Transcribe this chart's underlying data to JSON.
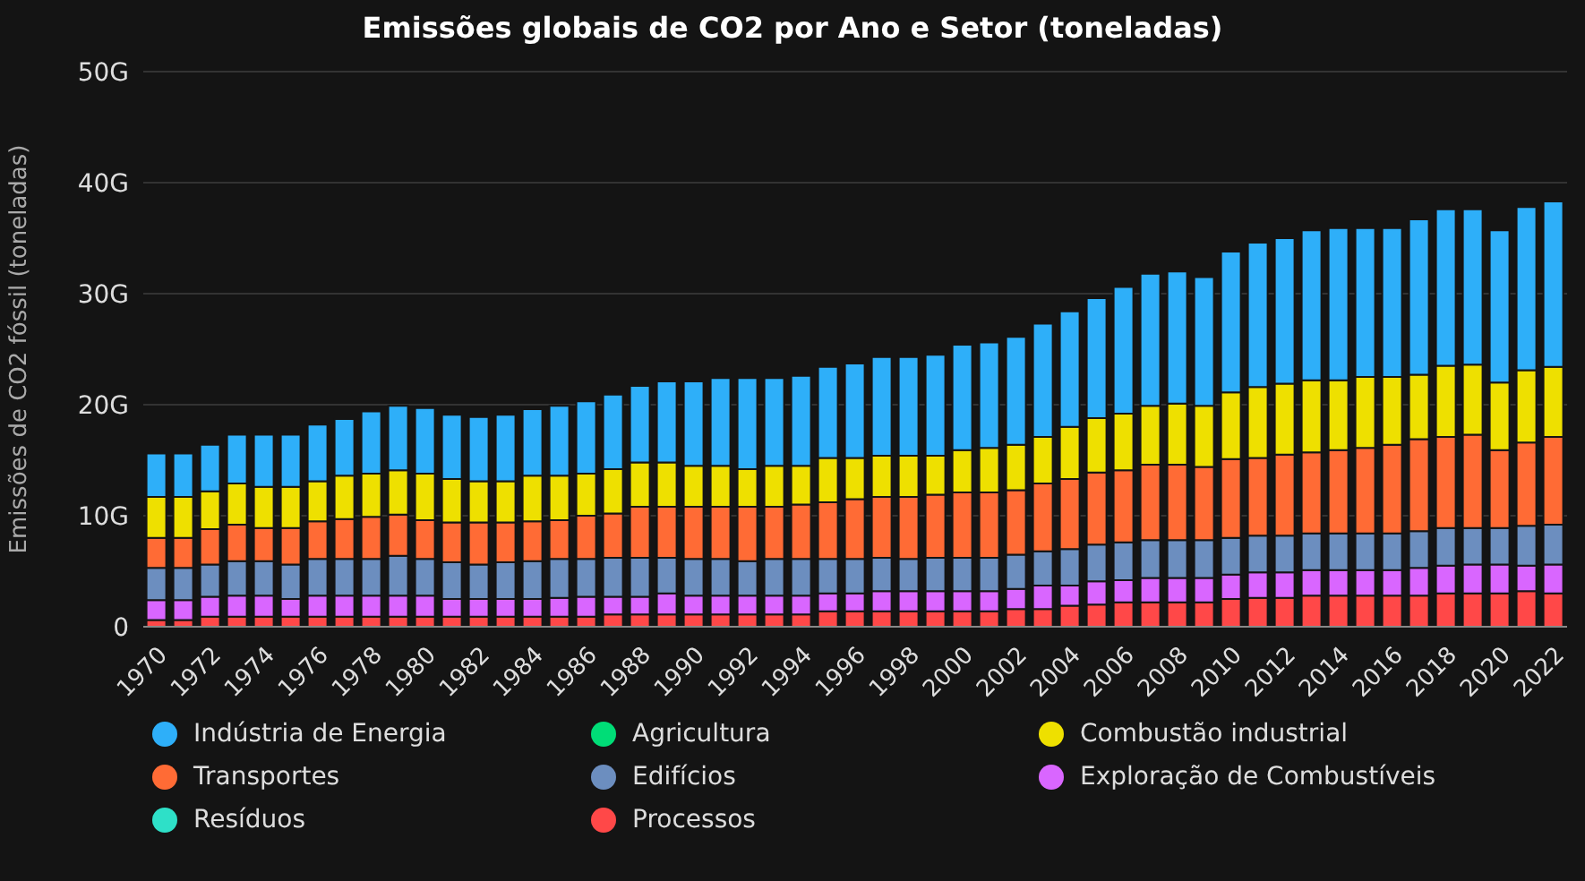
{
  "chart_data": {
    "type": "bar",
    "stacked": true,
    "title": "Emissões globais de CO2 por Ano e Setor (toneladas)",
    "ylabel": "Emissões de CO2 fóssil (toneladas)",
    "categories": [
      "1970",
      null,
      "1972",
      null,
      "1974",
      null,
      "1976",
      null,
      "1978",
      null,
      "1980",
      null,
      "1982",
      null,
      "1984",
      null,
      "1986",
      null,
      "1988",
      null,
      "1990",
      null,
      "1992",
      null,
      "1994",
      null,
      "1996",
      null,
      "1998",
      null,
      "2000",
      null,
      "2002",
      null,
      "2004",
      null,
      "2006",
      null,
      "2008",
      null,
      "2010",
      null,
      "2012",
      null,
      "2014",
      null,
      "2016",
      null,
      "2018",
      null,
      "2020",
      null,
      "2022"
    ],
    "ylim": [
      0,
      50
    ],
    "yticks": [
      0,
      {
        "value": 10,
        "label": "10G"
      },
      {
        "value": 20,
        "label": "20G"
      },
      {
        "value": 30,
        "label": "30G"
      },
      {
        "value": 40,
        "label": "40G"
      },
      {
        "value": 50,
        "label": "50G"
      }
    ],
    "grid": "y",
    "legend": "bottom",
    "series": [
      {
        "name": "Processos",
        "color": "#ff4848",
        "values": [
          0.6,
          0.6,
          0.9,
          0.9,
          0.9,
          0.9,
          0.9,
          0.9,
          0.9,
          0.9,
          0.9,
          0.9,
          0.9,
          0.9,
          0.9,
          0.9,
          0.9,
          1.1,
          1.1,
          1.1,
          1.1,
          1.1,
          1.1,
          1.1,
          1.1,
          1.4,
          1.4,
          1.4,
          1.4,
          1.4,
          1.4,
          1.4,
          1.6,
          1.6,
          1.9,
          2.0,
          2.2,
          2.2,
          2.2,
          2.2,
          2.5,
          2.6,
          2.6,
          2.8,
          2.8,
          2.8,
          2.8,
          2.8,
          3.0,
          3.0,
          3.0,
          3.2,
          3.0
        ]
      },
      {
        "name": "Resíduos",
        "color": "#2ee0c8",
        "values": [
          0,
          0,
          0,
          0,
          0,
          0,
          0,
          0,
          0,
          0,
          0,
          0,
          0,
          0,
          0,
          0,
          0,
          0,
          0,
          0,
          0,
          0,
          0,
          0,
          0,
          0,
          0,
          0,
          0,
          0,
          0,
          0,
          0,
          0,
          0,
          0,
          0,
          0,
          0,
          0,
          0,
          0,
          0,
          0,
          0,
          0,
          0,
          0,
          0,
          0,
          0,
          0,
          0
        ]
      },
      {
        "name": "Exploração de Combustíveis",
        "color": "#d966ff",
        "values": [
          1.8,
          1.8,
          1.8,
          1.9,
          1.9,
          1.6,
          1.9,
          1.9,
          1.9,
          1.9,
          1.9,
          1.6,
          1.6,
          1.6,
          1.6,
          1.7,
          1.8,
          1.6,
          1.6,
          1.9,
          1.7,
          1.7,
          1.7,
          1.7,
          1.7,
          1.6,
          1.6,
          1.8,
          1.8,
          1.8,
          1.8,
          1.8,
          1.8,
          2.1,
          1.8,
          2.1,
          2.0,
          2.2,
          2.2,
          2.2,
          2.2,
          2.3,
          2.3,
          2.3,
          2.3,
          2.3,
          2.3,
          2.5,
          2.5,
          2.6,
          2.6,
          2.3,
          2.6
        ]
      },
      {
        "name": "Edifícios",
        "color": "#6c8ebf",
        "values": [
          2.9,
          2.9,
          2.9,
          3.1,
          3.1,
          3.1,
          3.3,
          3.3,
          3.3,
          3.6,
          3.3,
          3.3,
          3.1,
          3.3,
          3.4,
          3.5,
          3.4,
          3.5,
          3.5,
          3.2,
          3.3,
          3.3,
          3.1,
          3.3,
          3.3,
          3.1,
          3.1,
          3.0,
          2.9,
          3.0,
          3.0,
          3.0,
          3.1,
          3.1,
          3.3,
          3.3,
          3.4,
          3.4,
          3.4,
          3.4,
          3.3,
          3.3,
          3.3,
          3.3,
          3.3,
          3.3,
          3.3,
          3.3,
          3.4,
          3.3,
          3.3,
          3.6,
          3.6
        ]
      },
      {
        "name": "Transportes",
        "color": "#ff6b35",
        "values": [
          2.7,
          2.7,
          3.2,
          3.3,
          3.0,
          3.3,
          3.4,
          3.6,
          3.8,
          3.7,
          3.5,
          3.6,
          3.8,
          3.6,
          3.6,
          3.5,
          3.9,
          4.0,
          4.6,
          4.6,
          4.7,
          4.7,
          4.9,
          4.7,
          4.9,
          5.1,
          5.4,
          5.5,
          5.6,
          5.7,
          5.9,
          5.9,
          5.8,
          6.1,
          6.3,
          6.5,
          6.5,
          6.8,
          6.8,
          6.6,
          7.1,
          7.0,
          7.3,
          7.3,
          7.5,
          7.7,
          8.0,
          8.3,
          8.2,
          8.4,
          7.0,
          7.5,
          7.9
        ]
      },
      {
        "name": "Combustão industrial",
        "color": "#eee000",
        "values": [
          3.7,
          3.7,
          3.4,
          3.7,
          3.7,
          3.7,
          3.6,
          3.9,
          3.9,
          4.0,
          4.2,
          3.9,
          3.7,
          3.7,
          4.1,
          4.0,
          3.8,
          4.0,
          4.0,
          4.0,
          3.7,
          3.7,
          3.4,
          3.7,
          3.5,
          4.0,
          3.7,
          3.7,
          3.7,
          3.5,
          3.8,
          4.0,
          4.1,
          4.2,
          4.7,
          4.9,
          5.1,
          5.3,
          5.5,
          5.5,
          6.0,
          6.4,
          6.4,
          6.5,
          6.3,
          6.4,
          6.1,
          5.8,
          6.4,
          6.3,
          6.1,
          6.5,
          6.3
        ]
      },
      {
        "name": "Agricultura",
        "color": "#00dd77",
        "values": [
          0,
          0,
          0,
          0,
          0,
          0,
          0,
          0,
          0,
          0,
          0,
          0,
          0,
          0,
          0,
          0,
          0,
          0,
          0,
          0,
          0,
          0,
          0,
          0,
          0,
          0,
          0,
          0,
          0,
          0,
          0,
          0,
          0,
          0,
          0,
          0,
          0,
          0,
          0,
          0,
          0,
          0,
          0,
          0,
          0,
          0,
          0,
          0,
          0,
          0,
          0,
          0,
          0
        ]
      },
      {
        "name": "Indústria de Energia",
        "color": "#2eaff9",
        "values": [
          3.9,
          3.9,
          4.2,
          4.4,
          4.7,
          4.7,
          5.1,
          5.1,
          5.6,
          5.8,
          5.9,
          5.8,
          5.8,
          6.0,
          6.0,
          6.3,
          6.5,
          6.7,
          6.9,
          7.3,
          7.6,
          7.9,
          8.2,
          7.9,
          8.1,
          8.2,
          8.5,
          8.9,
          8.9,
          9.1,
          9.5,
          9.5,
          9.7,
          10.2,
          10.4,
          10.8,
          11.4,
          11.9,
          11.9,
          11.6,
          12.7,
          13.0,
          13.1,
          13.5,
          13.7,
          13.4,
          13.4,
          14.0,
          14.1,
          14.0,
          13.7,
          14.7,
          14.9
        ]
      }
    ]
  }
}
